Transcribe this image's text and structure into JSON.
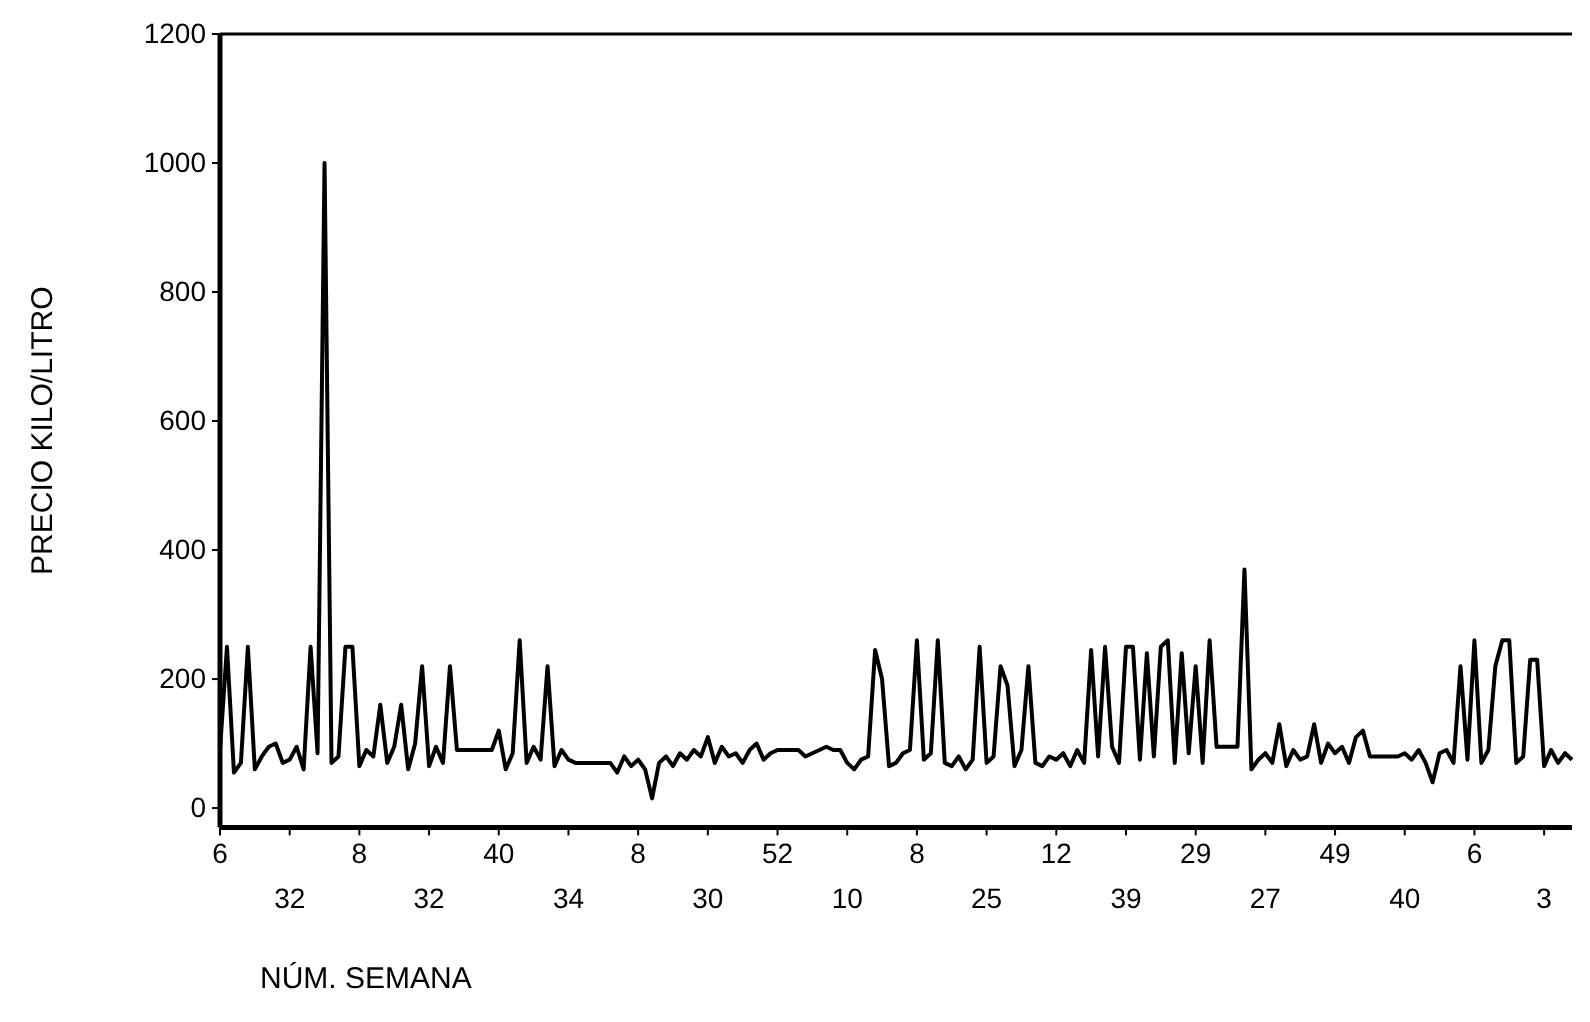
{
  "chart_data": {
    "type": "line",
    "xlabel": "NÚM. SEMANA",
    "ylabel": "PRECIO KILO/LITRO",
    "categories": [
      "6",
      null,
      null,
      null,
      null,
      null,
      null,
      null,
      null,
      null,
      "32",
      null,
      null,
      null,
      null,
      null,
      null,
      null,
      null,
      null,
      "8",
      null,
      null,
      null,
      null,
      null,
      null,
      null,
      null,
      null,
      "32",
      null,
      null,
      null,
      null,
      null,
      null,
      null,
      null,
      null,
      "40",
      null,
      null,
      null,
      null,
      null,
      null,
      null,
      null,
      null,
      "34",
      null,
      null,
      null,
      null,
      null,
      null,
      null,
      null,
      null,
      "8",
      null,
      null,
      null,
      null,
      null,
      null,
      null,
      null,
      null,
      "30",
      null,
      null,
      null,
      null,
      null,
      null,
      null,
      null,
      null,
      "52",
      null,
      null,
      null,
      null,
      null,
      null,
      null,
      null,
      null,
      "10",
      null,
      null,
      null,
      null,
      null,
      null,
      null,
      null,
      null,
      "8",
      null,
      null,
      null,
      null,
      null,
      null,
      null,
      null,
      null,
      "25",
      null,
      null,
      null,
      null,
      null,
      null,
      null,
      null,
      null,
      "12",
      null,
      null,
      null,
      null,
      null,
      null,
      null,
      null,
      null,
      "39",
      null,
      null,
      null,
      null,
      null,
      null,
      null,
      null,
      null,
      "29",
      null,
      null,
      null,
      null,
      null,
      null,
      null,
      null,
      null,
      "27",
      null,
      null,
      null,
      null,
      null,
      null,
      null,
      null,
      null,
      "49",
      null,
      null,
      null,
      null,
      null,
      null,
      null,
      null,
      null,
      "40",
      null,
      null,
      null,
      null,
      null,
      null,
      null,
      null,
      null,
      "6",
      null,
      null,
      null,
      null,
      null,
      null,
      null,
      null,
      null,
      "3",
      null,
      null,
      null,
      null
    ],
    "series": [
      {
        "color": "#000000",
        "values": [
          90,
          250,
          55,
          70,
          250,
          60,
          80,
          95,
          100,
          70,
          75,
          95,
          60,
          250,
          85,
          1000,
          70,
          80,
          250,
          250,
          65,
          90,
          80,
          160,
          70,
          95,
          160,
          60,
          100,
          220,
          65,
          95,
          70,
          220,
          90,
          90,
          90,
          90,
          90,
          90,
          120,
          60,
          85,
          260,
          70,
          95,
          75,
          220,
          65,
          90,
          75,
          70,
          70,
          70,
          70,
          70,
          70,
          55,
          80,
          65,
          75,
          60,
          15,
          70,
          80,
          65,
          85,
          75,
          90,
          80,
          110,
          70,
          95,
          80,
          85,
          70,
          90,
          100,
          75,
          85,
          90,
          90,
          90,
          90,
          80,
          85,
          90,
          95,
          90,
          90,
          70,
          60,
          75,
          80,
          245,
          200,
          65,
          70,
          85,
          90,
          260,
          75,
          85,
          260,
          70,
          65,
          80,
          60,
          75,
          250,
          70,
          80,
          220,
          190,
          65,
          90,
          220,
          70,
          65,
          80,
          75,
          85,
          65,
          90,
          70,
          245,
          80,
          250,
          95,
          70,
          250,
          250,
          75,
          240,
          80,
          250,
          260,
          70,
          240,
          85,
          220,
          70,
          260,
          95,
          95,
          95,
          95,
          370,
          60,
          75,
          85,
          70,
          130,
          65,
          90,
          75,
          80,
          130,
          70,
          100,
          85,
          95,
          70,
          110,
          120,
          80,
          80,
          80,
          80,
          80,
          85,
          75,
          90,
          70,
          40,
          85,
          90,
          70,
          220,
          75,
          260,
          70,
          90,
          220,
          260,
          260,
          70,
          80,
          230,
          230,
          65,
          90,
          70,
          85,
          75
        ]
      }
    ],
    "ylim": [
      -30,
      1200
    ],
    "yticks": [
      0,
      200,
      400,
      600,
      800,
      1000,
      1200
    ],
    "grid": false,
    "marker": "none",
    "line_style": "solid"
  }
}
